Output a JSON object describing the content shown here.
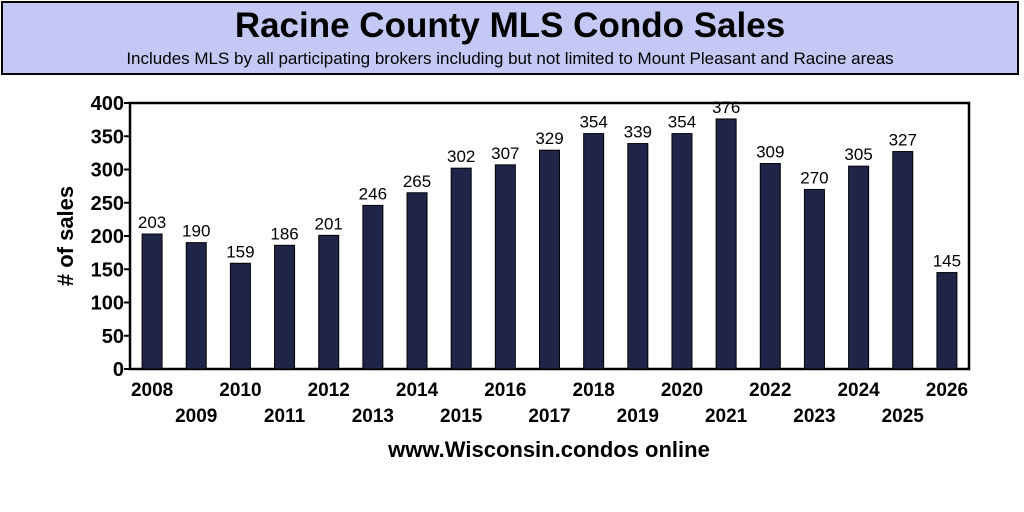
{
  "chart_data": {
    "type": "bar",
    "title": "Racine County MLS Condo Sales",
    "subtitle": "Includes MLS by all participating brokers including but not limited to Mount Pleasant and Racine areas",
    "xlabel": "www.Wisconsin.condos online",
    "ylabel": "# of sales",
    "categories": [
      "2008",
      "2009",
      "2010",
      "2011",
      "2012",
      "2013",
      "2014",
      "2015",
      "2016",
      "2017",
      "2018",
      "2019",
      "2020",
      "2021",
      "2022",
      "2023",
      "2024",
      "2025",
      "2026"
    ],
    "values": [
      203,
      190,
      159,
      186,
      201,
      246,
      265,
      302,
      307,
      329,
      354,
      339,
      354,
      376,
      309,
      270,
      305,
      327,
      145
    ],
    "ylim": [
      0,
      400
    ],
    "yticks": [
      0,
      50,
      100,
      150,
      200,
      250,
      300,
      350,
      400
    ],
    "grid": false,
    "legend": "none",
    "bar_color": "#1f2549",
    "title_background": "#c3c9f4"
  }
}
